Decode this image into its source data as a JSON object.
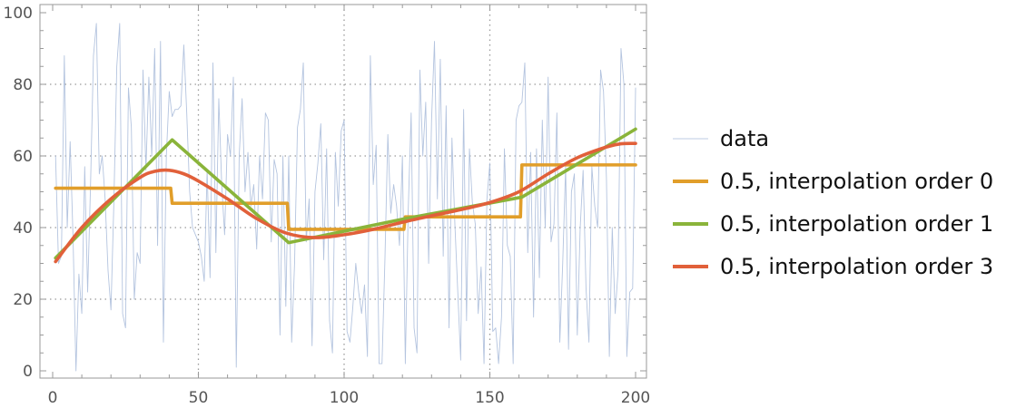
{
  "chart_data": {
    "type": "line",
    "xlim": [
      0,
      200
    ],
    "ylim": [
      0,
      100
    ],
    "x_ticks": [
      0,
      50,
      100,
      150,
      200
    ],
    "y_ticks": [
      0,
      20,
      40,
      60,
      80,
      100
    ],
    "x_tick_labels": [
      "0",
      "50",
      "100",
      "150",
      "200"
    ],
    "y_tick_labels": [
      "0",
      "20",
      "40",
      "60",
      "80",
      "100"
    ],
    "grid": "dotted at x=50,100,150 and y=20,40,60,80",
    "legend_position": "right",
    "series": [
      {
        "name": "data",
        "style": "thin",
        "color": "#a7bad9",
        "x": [
          1,
          2,
          3,
          4,
          5,
          6,
          7,
          8,
          9,
          10,
          11,
          12,
          13,
          14,
          15,
          16,
          17,
          18,
          19,
          20,
          21,
          22,
          23,
          24,
          25,
          26,
          27,
          28,
          29,
          30,
          31,
          32,
          33,
          34,
          35,
          36,
          37,
          38,
          39,
          40,
          41,
          42,
          43,
          44,
          45,
          46,
          47,
          48,
          49,
          50,
          51,
          52,
          53,
          54,
          55,
          56,
          57,
          58,
          59,
          60,
          61,
          62,
          63,
          64,
          65,
          66,
          67,
          68,
          69,
          70,
          71,
          72,
          73,
          74,
          75,
          76,
          77,
          78,
          79,
          80,
          81,
          82,
          83,
          84,
          85,
          86,
          87,
          88,
          89,
          90,
          91,
          92,
          93,
          94,
          95,
          96,
          97,
          98,
          99,
          100,
          101,
          102,
          103,
          104,
          105,
          106,
          107,
          108,
          109,
          110,
          111,
          112,
          113,
          114,
          115,
          116,
          117,
          118,
          119,
          120,
          121,
          122,
          123,
          124,
          125,
          126,
          127,
          128,
          129,
          130,
          131,
          132,
          133,
          134,
          135,
          136,
          137,
          138,
          139,
          140,
          141,
          142,
          143,
          144,
          145,
          146,
          147,
          148,
          149,
          150,
          151,
          152,
          153,
          154,
          155,
          156,
          157,
          158,
          159,
          160,
          161,
          162,
          163,
          164,
          165,
          166,
          167,
          168,
          169,
          170,
          171,
          172,
          173,
          174,
          175,
          176,
          177,
          178,
          179,
          180,
          181,
          182,
          183,
          184,
          185,
          186,
          187,
          188,
          189,
          190,
          191,
          192,
          193,
          194,
          195,
          196,
          197,
          198,
          199,
          200
        ],
        "y": [
          60,
          30,
          32,
          88,
          40,
          64,
          37,
          0,
          27,
          16,
          57,
          22,
          52,
          88,
          97,
          55,
          60,
          48,
          28,
          17,
          47,
          85,
          97,
          16,
          12,
          79,
          68,
          20,
          33,
          30,
          84,
          56,
          82,
          60,
          90,
          35,
          92,
          8,
          60,
          78,
          71,
          73,
          73,
          74,
          91,
          72,
          50,
          40,
          38,
          36,
          32,
          25,
          56,
          26,
          86,
          33,
          76,
          52,
          38,
          66,
          60,
          82,
          1,
          60,
          76,
          50,
          61,
          46,
          52,
          34,
          60,
          48,
          72,
          70,
          36,
          59,
          55,
          10,
          60,
          18,
          60,
          8,
          30,
          68,
          73,
          86,
          36,
          48,
          7,
          50,
          58,
          69,
          31,
          62,
          14,
          5,
          61,
          46,
          67,
          70,
          11,
          8,
          18,
          30,
          22,
          16,
          24,
          4,
          88,
          52,
          63,
          2,
          2,
          31,
          66,
          44,
          52,
          46,
          35,
          60,
          2,
          45,
          72,
          12,
          5,
          84,
          60,
          75,
          30,
          70,
          92,
          48,
          87,
          32,
          74,
          12,
          65,
          41,
          22,
          3,
          73,
          14,
          62,
          47,
          41,
          16,
          29,
          2,
          48,
          58,
          11,
          12,
          2,
          15,
          62,
          35,
          32,
          2,
          70,
          74,
          75,
          86,
          33,
          61,
          15,
          62,
          26,
          70,
          40,
          82,
          36,
          41,
          72,
          8,
          30,
          57,
          6,
          50,
          55,
          10,
          40,
          56,
          23,
          8,
          57,
          46,
          40,
          84,
          78,
          54,
          4,
          40,
          16,
          28,
          90,
          80,
          4,
          22,
          23,
          79
        ]
      },
      {
        "name": "0.5, interpolation order 0",
        "color": "#e19e2a",
        "x": [
          1,
          40.5,
          41,
          80.5,
          81,
          120.5,
          121,
          160.5,
          161,
          200
        ],
        "y": [
          51,
          51,
          46.8,
          46.8,
          39.5,
          39.5,
          43,
          43,
          57.5,
          57.5
        ]
      },
      {
        "name": "0.5, interpolation order 1",
        "color": "#8ab43a",
        "x": [
          1,
          41,
          81,
          121,
          161,
          200
        ],
        "y": [
          31.5,
          64.5,
          35.8,
          42.5,
          48.5,
          67.5
        ]
      },
      {
        "name": "0.5, interpolation order 3",
        "color": "#e1603a",
        "x": [
          1,
          10,
          20,
          30,
          35,
          40,
          45,
          50,
          60,
          70,
          80,
          90,
          100,
          110,
          120,
          130,
          140,
          150,
          160,
          170,
          180,
          190,
          195,
          200
        ],
        "y": [
          30.5,
          40,
          48,
          54,
          55.7,
          56,
          55,
          53,
          48,
          42.5,
          38.5,
          37.2,
          38,
          39.5,
          41.5,
          43.3,
          45,
          47,
          50,
          55,
          59.5,
          62.5,
          63.4,
          63.5
        ]
      }
    ]
  }
}
